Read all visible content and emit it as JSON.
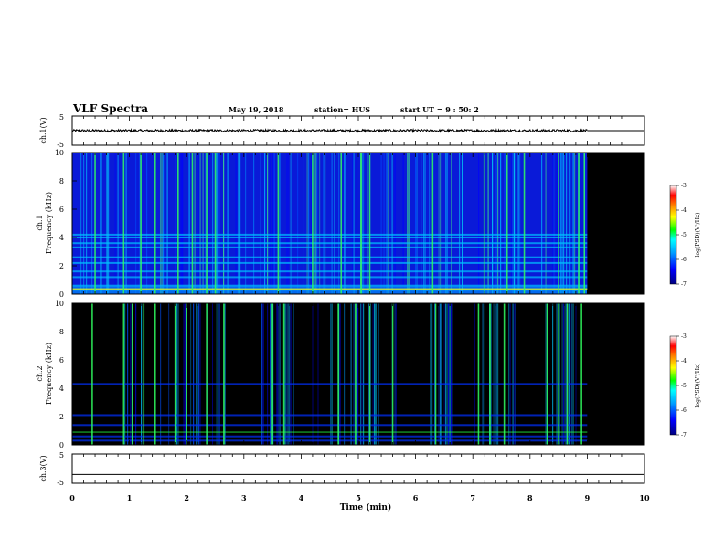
{
  "header": {
    "title": "VLF Spectra",
    "date": "May 19, 2018",
    "station": "station= HUS",
    "start_time": "start  UT =   9 : 50: 2"
  },
  "colors": {
    "background": "#ffffff",
    "ink": "#000000",
    "fill_after_data": "#000000"
  },
  "chart_data": [
    {
      "type": "line",
      "panel": "ch.1 waveform",
      "ylabel": "ch.1(V)",
      "ylim": [
        -5,
        5
      ],
      "yticks": [
        "5",
        "-5"
      ],
      "series": [
        {
          "values": [
            0,
            0,
            0,
            0,
            0,
            0,
            0,
            0,
            0,
            0
          ]
        }
      ],
      "noise_amplitude_v": 0.4,
      "data_end_min": 9.0,
      "flat_after_end": 0
    },
    {
      "type": "heatmap",
      "panel": "ch.1 spectrogram",
      "ylabel_top": "ch.1",
      "ylabel": "Frequency (kHz)",
      "ylim": [
        0,
        10
      ],
      "yticks": [
        "0",
        "2",
        "4",
        "6",
        "8",
        "10"
      ],
      "data_end_min": 9.0,
      "colorbar": {
        "label": "log(PSD)(V²/Hz)",
        "range": [
          -7,
          -3
        ],
        "ticks": [
          "-3",
          "-4",
          "-5",
          "-6",
          "-7"
        ],
        "colors": [
          "#000080",
          "#0000ff",
          "#00a0ff",
          "#00ffff",
          "#00ff00",
          "#ffff00",
          "#ff8000",
          "#ff0000",
          "#ffffff"
        ]
      },
      "background_level": -6.1,
      "horizontal_bands_khz": [
        0.3,
        0.6,
        1.2,
        1.6,
        2.2,
        2.6,
        3.3,
        3.6,
        4.0,
        4.2
      ],
      "bright_streaks_min": [
        0.4,
        0.9,
        1.2,
        1.45,
        1.85,
        2.1,
        2.35,
        2.5,
        3.6,
        4.2,
        4.7,
        5.05,
        5.2,
        6.3,
        7.2,
        7.6,
        7.9,
        8.5,
        8.85,
        8.95
      ]
    },
    {
      "type": "heatmap",
      "panel": "ch.2 spectrogram",
      "ylabel_top": "ch.2",
      "ylabel": "Frequency (kHz)",
      "ylim": [
        0,
        10
      ],
      "yticks": [
        "0",
        "2",
        "4",
        "6",
        "8",
        "10"
      ],
      "data_end_min": 9.0,
      "colorbar": {
        "label": "log(PSD)(V²/Hz)",
        "range": [
          -7,
          -3
        ],
        "ticks": [
          "-3",
          "-4",
          "-5",
          "-6",
          "-7"
        ],
        "colors": [
          "#000080",
          "#0000ff",
          "#00a0ff",
          "#00ffff",
          "#00ff00",
          "#ffff00",
          "#ff8000",
          "#ff0000",
          "#ffffff"
        ]
      },
      "background_level": -7.0,
      "horizontal_bands_khz": [
        0.3,
        0.6,
        1.4,
        2.1,
        4.3
      ],
      "tone_line_khz": 0.9,
      "activity_ranges_min": [
        [
          0.9,
          1.2
        ],
        [
          1.5,
          2.3
        ],
        [
          2.5,
          2.7
        ],
        [
          3.3,
          3.9
        ],
        [
          4.5,
          5.35
        ],
        [
          5.55,
          5.65
        ],
        [
          6.25,
          6.7
        ],
        [
          6.95,
          7.45
        ],
        [
          7.6,
          7.75
        ],
        [
          8.25,
          8.75
        ]
      ],
      "bright_streaks_min": [
        0.35,
        0.9,
        1.05,
        1.25,
        1.45,
        1.8,
        2.0,
        2.35,
        2.65,
        3.5,
        3.7,
        4.65,
        4.95,
        5.2,
        5.6,
        6.35,
        7.1,
        7.3,
        7.55,
        8.3,
        8.5,
        8.65,
        8.9
      ]
    },
    {
      "type": "line",
      "panel": "ch.3 waveform",
      "ylabel": "ch.3(V)",
      "ylim": [
        -5,
        5
      ],
      "yticks": [
        "5",
        "-5"
      ],
      "series": [
        {
          "values": [
            -2,
            -2,
            -2,
            -2,
            -2,
            -2,
            -2,
            -2,
            -2,
            -2,
            -2
          ]
        }
      ]
    }
  ],
  "x_axis": {
    "xlabel": "Time (min)",
    "xlim": [
      0,
      10
    ],
    "ticks": [
      "0",
      "1",
      "2",
      "3",
      "4",
      "5",
      "6",
      "7",
      "8",
      "9",
      "10"
    ]
  }
}
